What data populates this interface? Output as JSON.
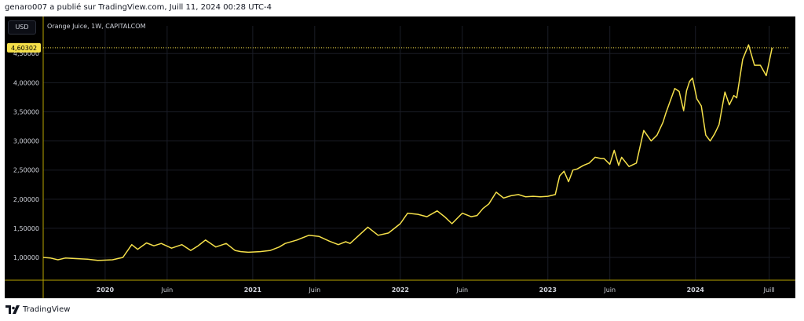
{
  "header": {
    "attribution": "genaro007 a publié sur TradingView.com, Juill 11, 2024 00:28 UTC-4"
  },
  "toolbar": {
    "currency_label": "USD"
  },
  "symbol": {
    "label": "Orange Juice, 1W, CAPITALCOM"
  },
  "branding": {
    "logo_text": "TradingView",
    "icon": "tradingview-logo-icon"
  },
  "colors": {
    "background": "#000000",
    "line": "#f5e04a",
    "axis": "#b8a400",
    "text": "#d1d4dc",
    "grid": "#1a1d26"
  },
  "chart_data": {
    "type": "line",
    "title": "Orange Juice, 1W, CAPITALCOM",
    "xlabel": "",
    "ylabel": "",
    "ylim": [
      0.61,
      4.84
    ],
    "xlim": [
      2019.58,
      2024.64
    ],
    "grid": true,
    "last_value_label": "4,60302",
    "y_ticks": [
      {
        "value": 1.0,
        "label": "1,00000"
      },
      {
        "value": 1.5,
        "label": "1,50000"
      },
      {
        "value": 2.0,
        "label": "2,00000"
      },
      {
        "value": 2.5,
        "label": "2,50000"
      },
      {
        "value": 3.0,
        "label": "3,00000"
      },
      {
        "value": 3.5,
        "label": "3,50000"
      },
      {
        "value": 4.0,
        "label": "4,00000"
      },
      {
        "value": 4.5,
        "label": "4,50000"
      }
    ],
    "x_ticks": [
      {
        "x": 2020.0,
        "label": "2020",
        "bold": true
      },
      {
        "x": 2020.42,
        "label": "Juin",
        "bold": false
      },
      {
        "x": 2021.0,
        "label": "2021",
        "bold": true
      },
      {
        "x": 2021.42,
        "label": "Juin",
        "bold": false
      },
      {
        "x": 2022.0,
        "label": "2022",
        "bold": true
      },
      {
        "x": 2022.42,
        "label": "Juin",
        "bold": false
      },
      {
        "x": 2023.0,
        "label": "2023",
        "bold": true
      },
      {
        "x": 2023.42,
        "label": "Juin",
        "bold": false
      },
      {
        "x": 2024.0,
        "label": "2024",
        "bold": true
      },
      {
        "x": 2024.5,
        "label": "Juill",
        "bold": false
      }
    ],
    "series": [
      {
        "x": [
          2019.58,
          2019.63,
          2019.68,
          2019.73,
          2019.8,
          2019.88,
          2019.95,
          2020.05,
          2020.12,
          2020.18,
          2020.22,
          2020.28,
          2020.33,
          2020.38,
          2020.45,
          2020.52,
          2020.58,
          2020.63,
          2020.68,
          2020.75,
          2020.82,
          2020.88,
          2020.92,
          2020.97,
          2021.05,
          2021.12,
          2021.18,
          2021.22,
          2021.3,
          2021.38,
          2021.45,
          2021.52,
          2021.58,
          2021.63,
          2021.66,
          2021.72,
          2021.78,
          2021.85,
          2021.92,
          2022.0,
          2022.05,
          2022.12,
          2022.18,
          2022.25,
          2022.3,
          2022.35,
          2022.42,
          2022.48,
          2022.52,
          2022.56,
          2022.6,
          2022.65,
          2022.7,
          2022.75,
          2022.8,
          2022.85,
          2022.9,
          2022.95,
          2023.0,
          2023.05,
          2023.08,
          2023.11,
          2023.14,
          2023.17,
          2023.2,
          2023.24,
          2023.28,
          2023.32,
          2023.36,
          2023.38,
          2023.42,
          2023.45,
          2023.48,
          2023.5,
          2023.55,
          2023.6,
          2023.65,
          2023.7,
          2023.74,
          2023.78,
          2023.8,
          2023.84,
          2023.86,
          2023.89,
          2023.92,
          2023.94,
          2023.96,
          2023.98,
          2024.01,
          2024.04,
          2024.07,
          2024.1,
          2024.13,
          2024.16,
          2024.2,
          2024.23,
          2024.26,
          2024.28,
          2024.32,
          2024.36,
          2024.4,
          2024.44,
          2024.48,
          2024.52
        ],
        "values": [
          1.0,
          0.99,
          0.96,
          0.99,
          0.98,
          0.97,
          0.95,
          0.96,
          1.0,
          1.22,
          1.14,
          1.25,
          1.2,
          1.24,
          1.16,
          1.22,
          1.12,
          1.2,
          1.3,
          1.18,
          1.24,
          1.12,
          1.1,
          1.09,
          1.1,
          1.12,
          1.18,
          1.24,
          1.3,
          1.38,
          1.36,
          1.28,
          1.22,
          1.27,
          1.24,
          1.38,
          1.52,
          1.38,
          1.42,
          1.58,
          1.76,
          1.74,
          1.7,
          1.8,
          1.7,
          1.58,
          1.76,
          1.7,
          1.72,
          1.84,
          1.92,
          2.12,
          2.02,
          2.06,
          2.08,
          2.04,
          2.05,
          2.04,
          2.05,
          2.08,
          2.4,
          2.48,
          2.3,
          2.5,
          2.52,
          2.58,
          2.62,
          2.72,
          2.7,
          2.7,
          2.6,
          2.84,
          2.58,
          2.72,
          2.56,
          2.62,
          3.18,
          3.0,
          3.1,
          3.32,
          3.48,
          3.76,
          3.9,
          3.85,
          3.52,
          3.86,
          4.02,
          4.08,
          3.72,
          3.6,
          3.1,
          3.0,
          3.12,
          3.28,
          3.84,
          3.62,
          3.78,
          3.74,
          4.4,
          4.65,
          4.3,
          4.3,
          4.12,
          4.6
        ]
      }
    ]
  }
}
